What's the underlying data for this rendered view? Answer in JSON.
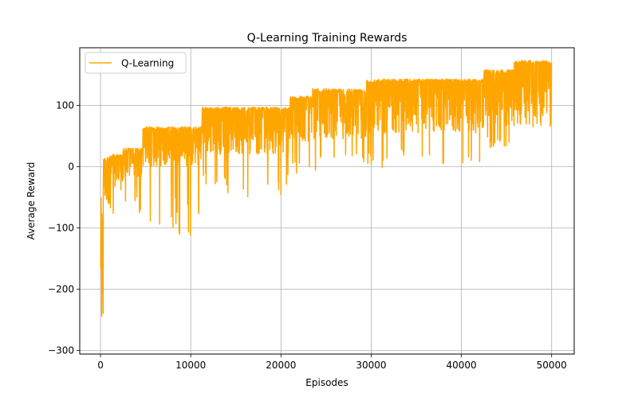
{
  "chart_data": {
    "type": "line",
    "title": "Q-Learning Training Rewards",
    "xlabel": "Episodes",
    "ylabel": "Average Reward",
    "xlim": [
      -2300,
      52500
    ],
    "ylim": [
      -306,
      194
    ],
    "x_ticks": [
      0,
      10000,
      20000,
      30000,
      40000,
      50000
    ],
    "x_tick_labels": [
      "0",
      "10000",
      "20000",
      "30000",
      "40000",
      "50000"
    ],
    "y_ticks": [
      -300,
      -200,
      -100,
      0,
      100
    ],
    "y_tick_labels": [
      "−300",
      "−200",
      "−100",
      "0",
      "100"
    ],
    "grid": true,
    "legend": {
      "position": "top-left",
      "entries": [
        "Q-Learning"
      ]
    },
    "series": [
      {
        "name": "Q-Learning",
        "color": "#FFA500",
        "description": "noisy stepwise rising reward curve; upper envelope and lower dips per segment",
        "envelope": [
          {
            "x": [
              0,
              300
            ],
            "upper": -50,
            "lower": -285,
            "dip": -285
          },
          {
            "x": [
              300,
              1000
            ],
            "upper": 15,
            "lower": -60,
            "dip": -60
          },
          {
            "x": [
              1000,
              2500
            ],
            "upper": 20,
            "lower": -40,
            "dip": -85
          },
          {
            "x": [
              2500,
              4700
            ],
            "upper": 30,
            "lower": -20,
            "dip": -80
          },
          {
            "x": [
              4700,
              11200
            ],
            "upper": 65,
            "lower": 0,
            "dip": -115
          },
          {
            "x": [
              11200,
              21000
            ],
            "upper": 97,
            "lower": 20,
            "dip": -50
          },
          {
            "x": [
              21000,
              23500
            ],
            "upper": 115,
            "lower": 40,
            "dip": -15
          },
          {
            "x": [
              23500,
              29500
            ],
            "upper": 127,
            "lower": 45,
            "dip": -8
          },
          {
            "x": [
              29500,
              42500
            ],
            "upper": 143,
            "lower": 55,
            "dip": -5
          },
          {
            "x": [
              42500,
              45800
            ],
            "upper": 158,
            "lower": 65,
            "dip": 30
          },
          {
            "x": [
              45800,
              50000
            ],
            "upper": 173,
            "lower": 80,
            "dip": 65
          }
        ]
      }
    ]
  }
}
